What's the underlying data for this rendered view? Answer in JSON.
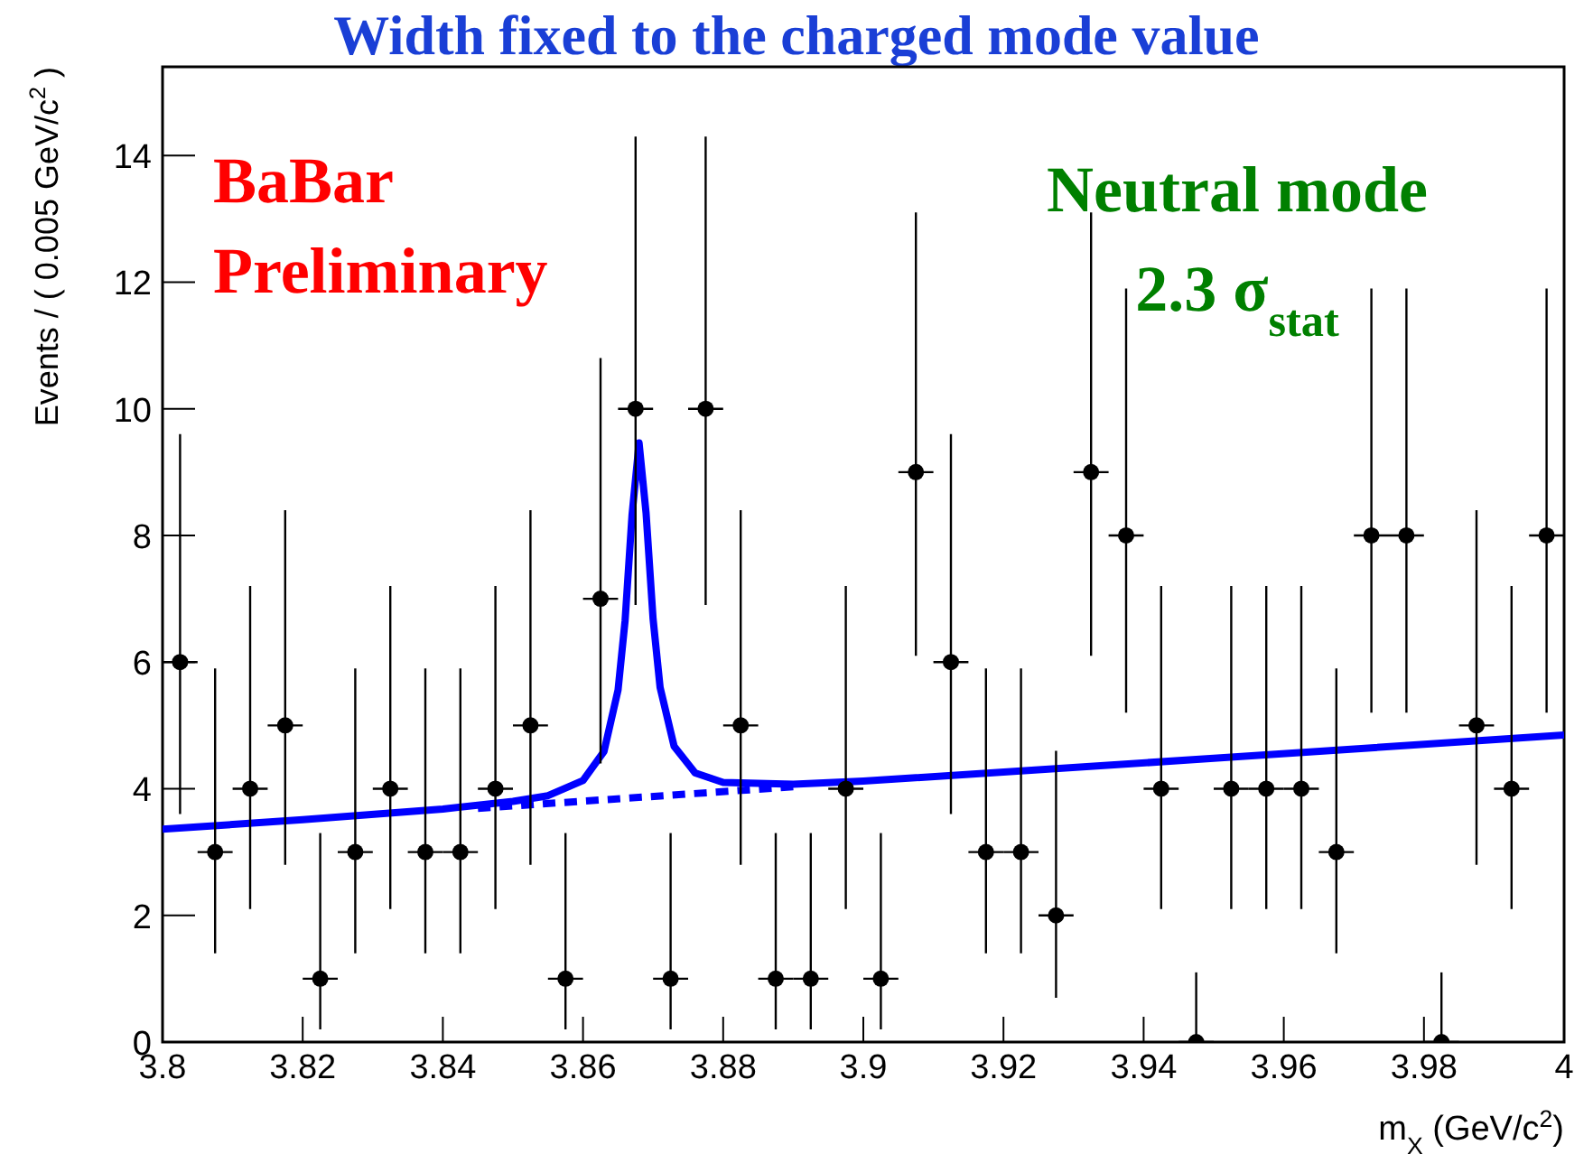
{
  "chart_data": {
    "type": "scatter",
    "title": "Width fixed to the charged mode value",
    "xlabel": "m$_{X}$ (GeV/c$^{2}$)",
    "ylabel": "Events / ( 0.005 GeV/c$^{2}$ )",
    "annotations": [
      "BaBar",
      "Preliminary",
      "Neutral mode",
      "2.3 σ$_{stat}$"
    ],
    "xlim": [
      3.8,
      4.0
    ],
    "xticks": [
      3.8,
      3.82,
      3.84,
      3.86,
      3.88,
      3.9,
      3.92,
      3.94,
      3.96,
      3.98,
      4
    ],
    "ylim": [
      0,
      15.4
    ],
    "yticks": [
      0,
      2,
      4,
      6,
      8,
      10,
      12,
      14
    ],
    "grid": false,
    "series": [
      {
        "type": "line",
        "color": "#0000ff",
        "line_style": "solid",
        "x": [
          3.8,
          3.82,
          3.84,
          3.85,
          3.855,
          3.86,
          3.863,
          3.865,
          3.866,
          3.867,
          3.868,
          3.869,
          3.87,
          3.871,
          3.873,
          3.876,
          3.88,
          3.89,
          3.9,
          3.95,
          4.0
        ],
        "values": [
          3.36,
          3.51,
          3.68,
          3.8,
          3.89,
          4.13,
          4.59,
          5.56,
          6.65,
          8.33,
          9.46,
          8.35,
          6.68,
          5.6,
          4.67,
          4.25,
          4.1,
          4.07,
          4.12,
          4.48,
          4.85
        ]
      },
      {
        "type": "line",
        "color": "#0000ff",
        "line_style": "dashed",
        "x": [
          3.845,
          3.89
        ],
        "values": [
          3.69,
          4.03
        ]
      },
      {
        "color": "#000000",
        "marker": "circle",
        "x": [
          3.8025,
          3.8075,
          3.8125,
          3.8175,
          3.8225,
          3.8275,
          3.8325,
          3.8375,
          3.8425,
          3.8475,
          3.8525,
          3.8575,
          3.8625,
          3.8675,
          3.8725,
          3.8775,
          3.8825,
          3.8875,
          3.8925,
          3.8975,
          3.9025,
          3.9075,
          3.9125,
          3.9175,
          3.9225,
          3.9275,
          3.9325,
          3.9375,
          3.9425,
          3.9475,
          3.9525,
          3.9575,
          3.9625,
          3.9675,
          3.9725,
          3.9775,
          3.9825,
          3.9875,
          3.9925,
          3.9975
        ],
        "values": [
          6,
          3,
          4,
          5,
          1,
          3,
          4,
          3,
          3,
          4,
          5,
          1,
          7,
          10,
          1,
          10,
          5,
          1,
          1,
          4,
          1,
          9,
          6,
          3,
          3,
          2,
          9,
          8,
          4,
          0,
          4,
          4,
          4,
          3,
          8,
          8,
          0,
          5,
          4,
          8
        ],
        "errors": [
          [
            3.6,
            9.6
          ],
          [
            1.4,
            5.9
          ],
          [
            2.1,
            7.2
          ],
          [
            2.8,
            8.4
          ],
          [
            0.2,
            3.3
          ],
          [
            1.4,
            5.9
          ],
          [
            2.1,
            7.2
          ],
          [
            1.4,
            5.9
          ],
          [
            1.4,
            5.9
          ],
          [
            2.1,
            7.2
          ],
          [
            2.8,
            8.4
          ],
          [
            0.2,
            3.3
          ],
          [
            4.4,
            10.8
          ],
          [
            6.9,
            14.3
          ],
          [
            0.2,
            3.3
          ],
          [
            6.9,
            14.3
          ],
          [
            2.8,
            8.4
          ],
          [
            0.2,
            3.3
          ],
          [
            0.2,
            3.3
          ],
          [
            2.1,
            7.2
          ],
          [
            0.2,
            3.3
          ],
          [
            6.1,
            13.1
          ],
          [
            3.6,
            9.6
          ],
          [
            1.4,
            5.9
          ],
          [
            1.4,
            5.9
          ],
          [
            0.7,
            4.6
          ],
          [
            6.1,
            13.1
          ],
          [
            5.2,
            11.9
          ],
          [
            2.1,
            7.2
          ],
          [
            0,
            1.1
          ],
          [
            2.1,
            7.2
          ],
          [
            2.1,
            7.2
          ],
          [
            2.1,
            7.2
          ],
          [
            1.4,
            5.9
          ],
          [
            5.2,
            11.9
          ],
          [
            5.2,
            11.9
          ],
          [
            0,
            1.1
          ],
          [
            2.8,
            8.4
          ],
          [
            2.1,
            7.2
          ],
          [
            5.2,
            11.9
          ]
        ],
        "xerrors": [
          0.0025,
          0.0025,
          0.0025,
          0.0025,
          0.0025,
          0.0025,
          0.0025,
          0.0025,
          0.0025,
          0.0025,
          0.0025,
          0.0025,
          0.0025,
          0.0025,
          0.0025,
          0.0025,
          0.0025,
          0.0025,
          0.0025,
          0.0025,
          0.0025,
          0.0025,
          0.0025,
          0.0025,
          0.0025,
          0.0025,
          0.0025,
          0.0025,
          0.0025,
          0.0025,
          0.0025,
          0.0025,
          0.0025,
          0.0025,
          0.0025,
          0.0025,
          0.0025,
          0.0025,
          0.0025,
          0.0025
        ]
      }
    ]
  }
}
